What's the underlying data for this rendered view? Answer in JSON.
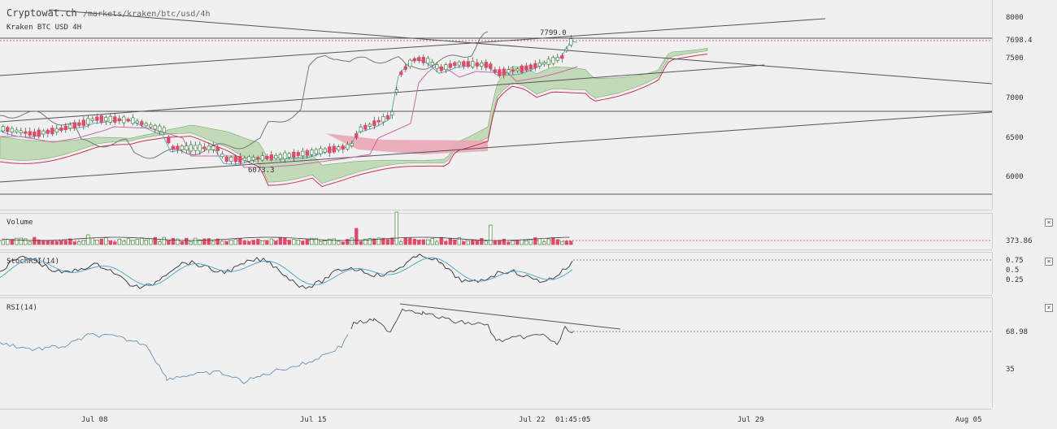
{
  "header": {
    "site": "Cryptowat.ch",
    "path": "/markets/kraken/btc/usd/4h",
    "subtitle": "Kraken BTC USD 4H"
  },
  "colors": {
    "up": "#7fbf7f",
    "down": "#e04a6a",
    "cloud_green": "#bcd7b0",
    "cloud_red": "#eaa7b6",
    "conversion": "#5fa8c8",
    "base": "#c86aa8",
    "grid": "#bdbdbd"
  },
  "price_panel": {
    "axis_ticks": [
      "8000",
      "7500",
      "7000",
      "6500",
      "6000"
    ],
    "last_price_label": "7698.4",
    "high_label": "7799.0",
    "low_label": "6073.3"
  },
  "volume_panel": {
    "title": "Volume",
    "value_label": "373.86",
    "close_icon": "close-icon"
  },
  "stochrsi_panel": {
    "title": "StochRSI(14)",
    "axis_ticks": [
      "0.75",
      "0.5",
      "0.25"
    ],
    "close_icon": "close-icon"
  },
  "rsi_panel": {
    "title": "RSI(14)",
    "axis_ticks": [
      "68.98",
      "35"
    ],
    "close_icon": "close-icon"
  },
  "x_axis": {
    "labels": [
      "Jul 08",
      "Jul 15",
      "Jul 22",
      "01:45:05",
      "Jul 29",
      "Aug 05"
    ]
  }
}
